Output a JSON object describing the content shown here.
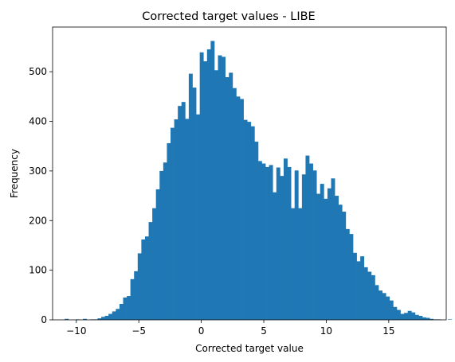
{
  "chart_data": {
    "type": "bar",
    "title": "Corrected target values - LIBE",
    "xlabel": "Corrected target value",
    "ylabel": "Frequency",
    "xlim": [
      -11.9,
      19.6
    ],
    "ylim": [
      0,
      590
    ],
    "xticks": [
      -10,
      -5,
      0,
      5,
      10,
      15
    ],
    "yticks": [
      0,
      100,
      200,
      300,
      400,
      500
    ],
    "bar_color": "#1f77b4",
    "bin_start": -10.93,
    "bin_width": 0.292,
    "counts": [
      2,
      0,
      0,
      1,
      0,
      2,
      0,
      1,
      1,
      3,
      6,
      8,
      12,
      17,
      22,
      32,
      45,
      48,
      82,
      98,
      134,
      162,
      168,
      197,
      225,
      263,
      300,
      317,
      356,
      387,
      404,
      431,
      439,
      405,
      496,
      468,
      414,
      539,
      521,
      545,
      562,
      503,
      533,
      530,
      489,
      498,
      467,
      450,
      445,
      403,
      399,
      390,
      359,
      320,
      315,
      308,
      312,
      257,
      307,
      290,
      325,
      308,
      225,
      301,
      225,
      293,
      331,
      315,
      301,
      254,
      274,
      244,
      265,
      285,
      250,
      232,
      218,
      183,
      173,
      135,
      118,
      128,
      106,
      97,
      90,
      70,
      59,
      54,
      47,
      39,
      26,
      20,
      12,
      14,
      18,
      15,
      10,
      8,
      5,
      4,
      2,
      1,
      1,
      0,
      0,
      1,
      0,
      0,
      0,
      0,
      0,
      0,
      2,
      4,
      1,
      0,
      0,
      0,
      0,
      1
    ]
  }
}
